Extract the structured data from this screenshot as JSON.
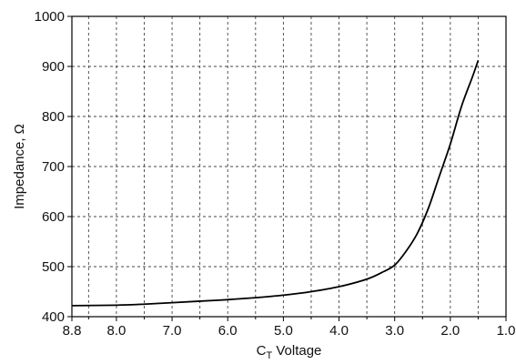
{
  "chart_data": {
    "type": "line",
    "x_reversed": true,
    "xlim": [
      8.8,
      1.0
    ],
    "ylim": [
      400,
      1000
    ],
    "x_ticks": [
      8.8,
      8.0,
      7.0,
      6.0,
      5.0,
      4.0,
      3.0,
      2.0,
      1.0
    ],
    "x_tick_labels": [
      "8.8",
      "8.0",
      "7.0",
      "6.0",
      "5.0",
      "4.0",
      "3.0",
      "2.0",
      "1.0"
    ],
    "y_ticks": [
      400,
      500,
      600,
      700,
      800,
      900,
      1000
    ],
    "y_tick_labels": [
      "400",
      "500",
      "600",
      "700",
      "800",
      "900",
      "1000"
    ],
    "x_minor_gridlines": [
      8.5,
      7.5,
      6.5,
      5.5,
      4.5,
      3.5,
      2.5,
      1.5
    ],
    "grid": "dashed",
    "xlabel": {
      "main": "C",
      "subscript": "T",
      "rest": " Voltage"
    },
    "ylabel": "Impedance, Ω",
    "series": [
      {
        "color": "#000000",
        "x": [
          8.8,
          8.0,
          7.5,
          7.0,
          6.5,
          6.0,
          5.5,
          5.0,
          4.5,
          4.0,
          3.5,
          3.2,
          3.0,
          2.8,
          2.6,
          2.4,
          2.2,
          2.0,
          1.8,
          1.6,
          1.5
        ],
        "y": [
          422,
          423,
          425,
          428,
          431,
          434,
          438,
          443,
          450,
          460,
          475,
          490,
          503,
          530,
          565,
          615,
          680,
          745,
          820,
          880,
          912
        ]
      }
    ]
  }
}
